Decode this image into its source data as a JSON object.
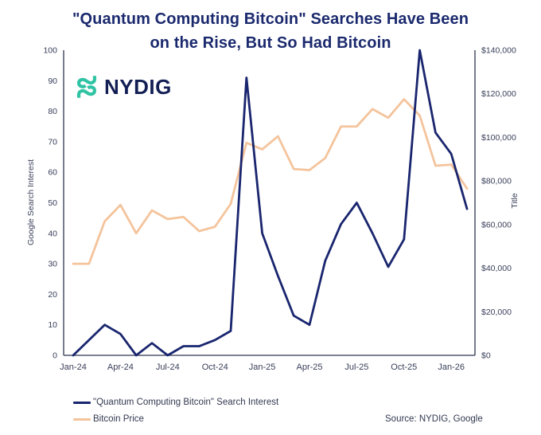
{
  "header": {
    "title_lines": [
      "\"Quantum Computing Bitcoin\" Searches Have Been",
      "on the Rise, But So Had Bitcoin"
    ],
    "title_color": "#1b2a6e"
  },
  "logo": {
    "text": "NYDIG",
    "icon": "nydig-knot-icon",
    "icon_color": "#2fc3a4",
    "text_color": "#131f54"
  },
  "chart_data": {
    "type": "line",
    "title": "\"Quantum Computing Bitcoin\" Searches Have Been on the Rise, But So Had Bitcoin",
    "x": [
      "Jan-24",
      "Feb-24",
      "Mar-24",
      "Apr-24",
      "May-24",
      "Jun-24",
      "Jul-24",
      "Aug-24",
      "Sep-24",
      "Oct-24",
      "Nov-24",
      "Dec-24",
      "Jan-25",
      "Feb-25",
      "Mar-25",
      "Apr-25",
      "May-25",
      "Jun-25",
      "Jul-25",
      "Aug-25",
      "Sep-25",
      "Oct-25",
      "Nov-25",
      "Dec-25",
      "Jan-26",
      "Feb-26"
    ],
    "x_tick_labels": [
      "Jan-24",
      "Apr-24",
      "Jul-24",
      "Oct-24",
      "Jan-25",
      "Apr-25",
      "Jul-25",
      "Oct-25",
      "Jan-26"
    ],
    "left_axis": {
      "label": "Google Search Interest",
      "min": 0,
      "max": 100,
      "step": 10
    },
    "right_axis": {
      "label": "Title",
      "min": 0,
      "max": 140000,
      "step": 20000,
      "prefix": "$"
    },
    "series": [
      {
        "name": "\"Quantum Computing Bitcoin\" Search Interest",
        "axis": "left",
        "color": "#19256e",
        "values": [
          0,
          5,
          10,
          7,
          0,
          4,
          0,
          3,
          3,
          5,
          8,
          91,
          40,
          26,
          13,
          10,
          31,
          43,
          50,
          40,
          29,
          38,
          100,
          73,
          66,
          48
        ]
      },
      {
        "name": "Bitcoin Price",
        "axis": "right",
        "color": "#f4c49c",
        "values": [
          42000,
          42000,
          61500,
          69000,
          56000,
          66500,
          62500,
          63500,
          57000,
          59000,
          69500,
          97500,
          94500,
          100500,
          85500,
          85000,
          90500,
          105000,
          105000,
          113000,
          109000,
          117500,
          110000,
          87000,
          87500,
          76500
        ]
      }
    ],
    "grid": false,
    "legend_position": "bottom-left",
    "axis_color": "#2f3550",
    "tick_label_color": "#39405a"
  },
  "legend": {
    "items": [
      {
        "label": "\"Quantum Computing Bitcoin\" Search Interest",
        "color": "#19256e"
      },
      {
        "label": "Bitcoin Price",
        "color": "#f4c49c"
      }
    ]
  },
  "source": {
    "text": "Source: NYDIG, Google"
  }
}
